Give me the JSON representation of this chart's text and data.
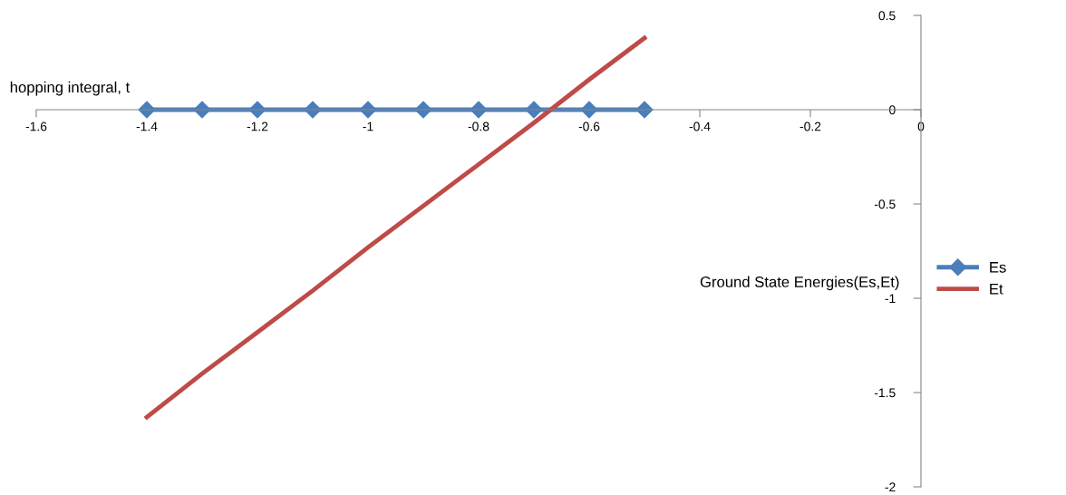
{
  "chart_data": {
    "type": "line",
    "xlabel": "hopping integral, t",
    "ylabel": "Ground State Energies(Es,Et)",
    "x": [
      -1.4,
      -1.3,
      -1.2,
      -1.1,
      -1.0,
      -0.9,
      -0.8,
      -0.7,
      -0.6,
      -0.5
    ],
    "series": [
      {
        "name": "Es",
        "color": "#4a7ebb",
        "marker": "diamond",
        "values": [
          0,
          0,
          0,
          0,
          0,
          0,
          0,
          0,
          0,
          0
        ]
      },
      {
        "name": "Et",
        "color": "#be4b48",
        "marker": "none",
        "values": [
          -1.63,
          -1.4,
          -1.18,
          -0.96,
          -0.73,
          -0.51,
          -0.29,
          -0.07,
          0.16,
          0.38
        ]
      }
    ],
    "xlim": [
      -1.6,
      0
    ],
    "xticks": [
      -1.6,
      -1.4,
      -1.2,
      -1,
      -0.8,
      -0.6,
      -0.4,
      -0.2,
      0
    ],
    "ylim": [
      -2,
      0.5
    ],
    "yticks": [
      -2,
      -1.5,
      -1,
      -0.5,
      0,
      0.5
    ],
    "grid": false,
    "legend": "right"
  }
}
